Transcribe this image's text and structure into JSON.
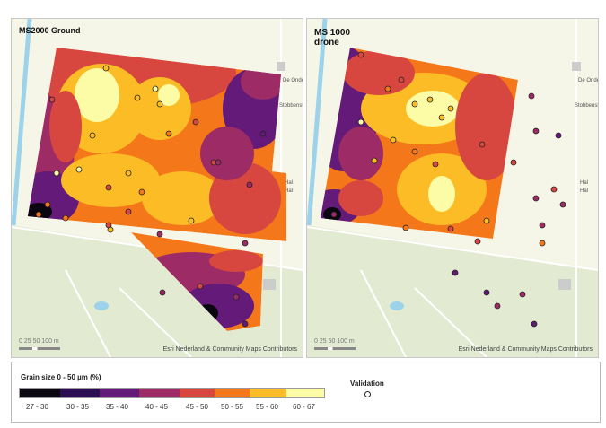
{
  "panels": [
    {
      "title": "MS2000 Ground",
      "scale_label": "0  25 50    100 m",
      "attribution": "Esri Nederland & Community Maps Contributors",
      "street_labels": [
        "De Ondersten...",
        "Stobbenstr...",
        "Hal",
        "Hal"
      ]
    },
    {
      "title": "MS 1000 drone",
      "scale_label": "0  25 50    100 m",
      "attribution": "Esri Nederland & Community Maps Contributors",
      "street_labels": [
        "De Ondersten...",
        "Stobbenstr...",
        "Hal",
        "Hal"
      ]
    }
  ],
  "legend": {
    "title": "Grain size 0 - 50 µm (%)",
    "classes": [
      {
        "label": "27 - 30",
        "color": "#0a0710"
      },
      {
        "label": "30 - 35",
        "color": "#2b0f52"
      },
      {
        "label": "35 - 40",
        "color": "#641a78"
      },
      {
        "label": "40 - 45",
        "color": "#9c2b66"
      },
      {
        "label": "45 - 50",
        "color": "#d7463f"
      },
      {
        "label": "50 - 55",
        "color": "#f4781a"
      },
      {
        "label": "55 - 60",
        "color": "#fbbc25"
      },
      {
        "label": "60 - 67",
        "color": "#fcfba6"
      }
    ],
    "validation_title": "Validation"
  }
}
